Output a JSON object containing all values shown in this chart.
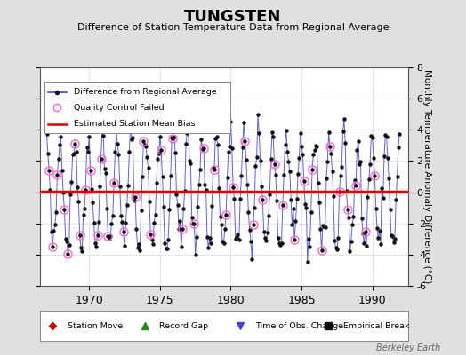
{
  "title": "TUNGSTEN",
  "subtitle": "Difference of Station Temperature Data from Regional Average",
  "ylabel": "Monthly Temperature Anomaly Difference (°C)",
  "xlabel_years": [
    1970,
    1975,
    1980,
    1985,
    1990
  ],
  "xlim": [
    1966.5,
    1992.5
  ],
  "ylim": [
    -6,
    8
  ],
  "yticks": [
    -6,
    -4,
    -2,
    0,
    2,
    4,
    6,
    8
  ],
  "bias_value": 0.05,
  "background_color": "#e0e0e0",
  "plot_bg_color": "#ffffff",
  "line_color": "#4444dd",
  "bias_color": "#dd0000",
  "qc_color": "#ff66cc",
  "dot_color": "#111111",
  "watermark": "Berkeley Earth",
  "legend1_labels": [
    "Difference from Regional Average",
    "Quality Control Failed",
    "Estimated Station Mean Bias"
  ],
  "legend2_labels": [
    "Station Move",
    "Record Gap",
    "Time of Obs. Change",
    "Empirical Break"
  ],
  "legend2_colors": [
    "#cc0000",
    "#228B22",
    "#4444dd",
    "#111111"
  ],
  "legend2_markers": [
    "D",
    "^",
    "v",
    "s"
  ]
}
